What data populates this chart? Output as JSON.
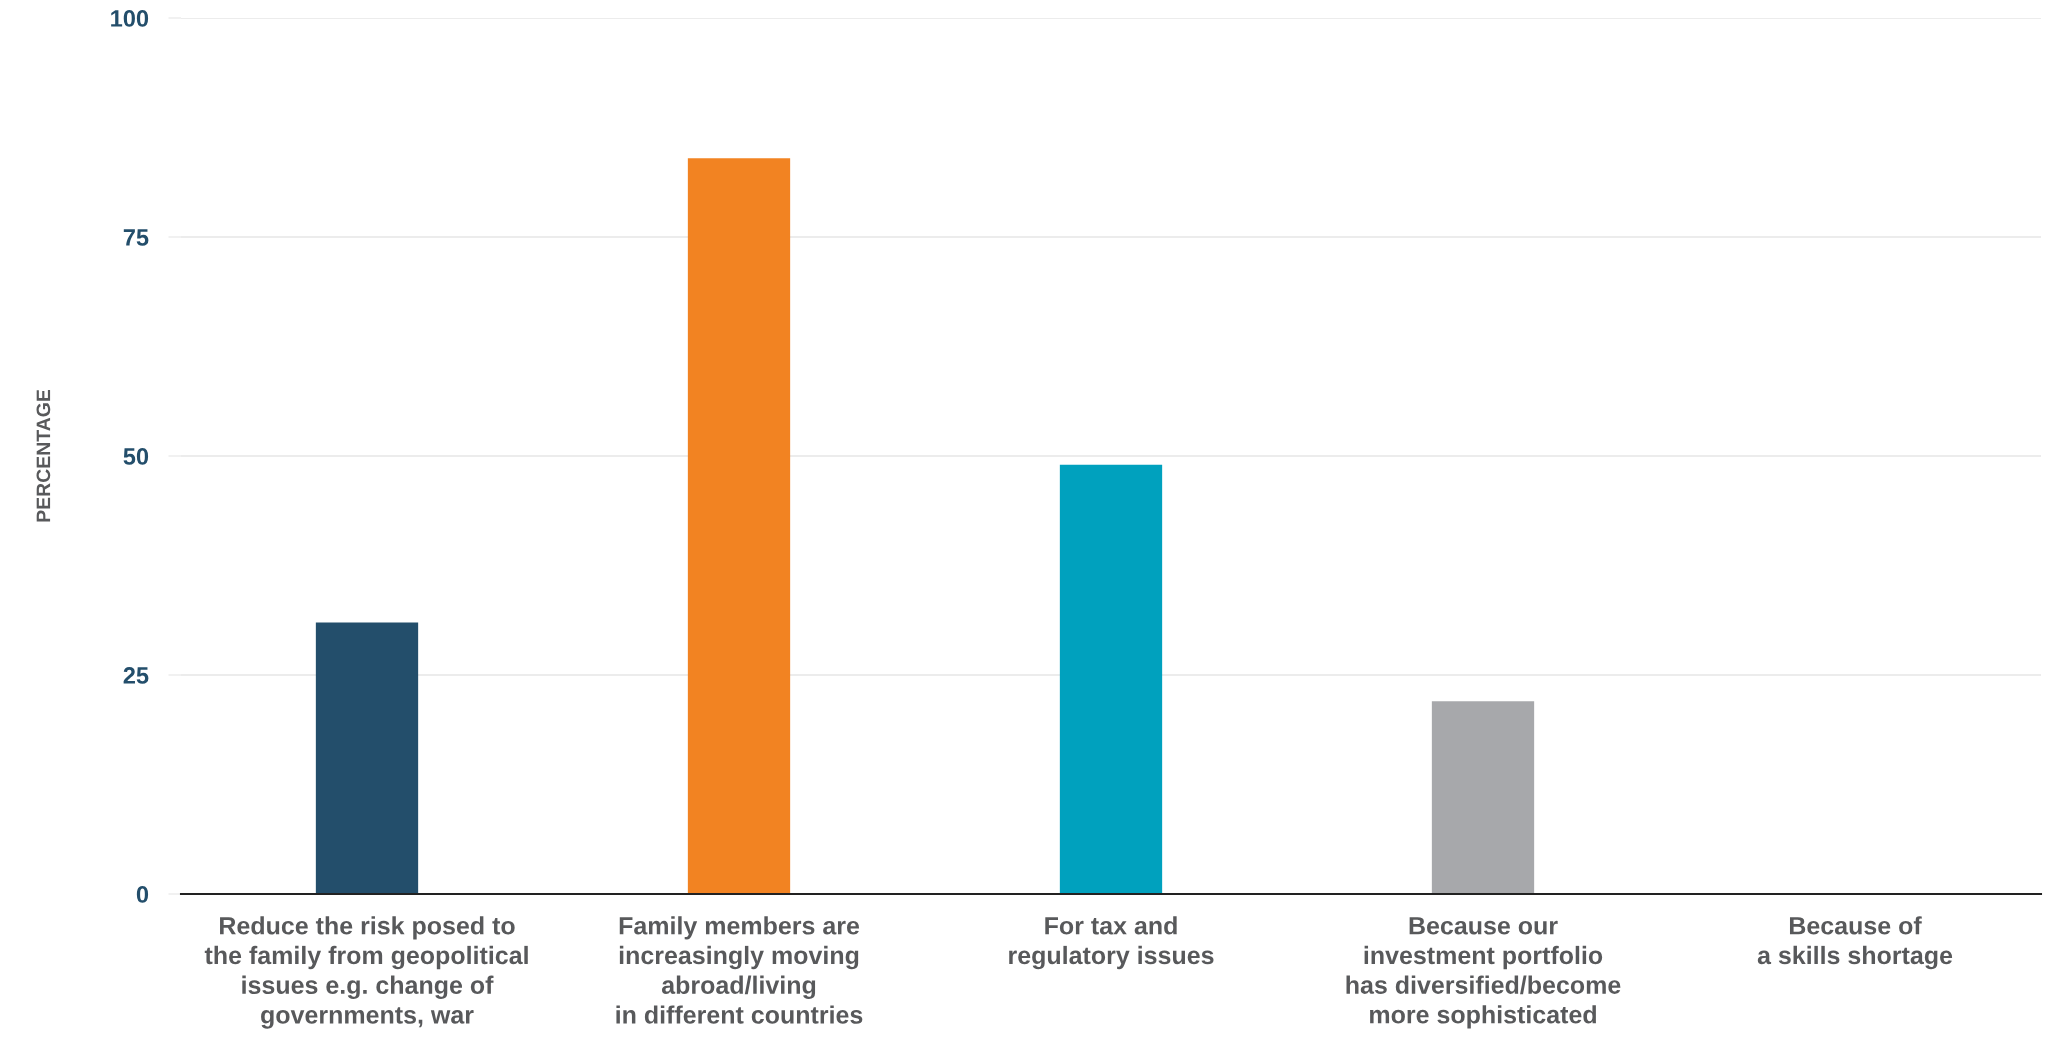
{
  "chart_data": {
    "type": "bar",
    "ylabel": "PERCENTAGE",
    "categories": [
      "Reduce the risk posed to\nthe family from geopolitical\nissues e.g. change of\ngovernments, war",
      "Family members are\nincreasingly moving\nabroad/living\nin different countries",
      "For tax and\nregulatory issues",
      "Because our\ninvestment portfolio\nhas diversified/become\nmore sophisticated",
      "Because of\na skills shortage"
    ],
    "values": [
      31,
      84,
      49,
      22,
      0
    ],
    "colors": [
      "#234e6b",
      "#f28322",
      "#00a1be",
      "#a7a8ab",
      "#a7a8ab"
    ],
    "ylim": [
      0,
      100
    ],
    "yticks": [
      0,
      25,
      50,
      75,
      100
    ],
    "grid": "y"
  }
}
